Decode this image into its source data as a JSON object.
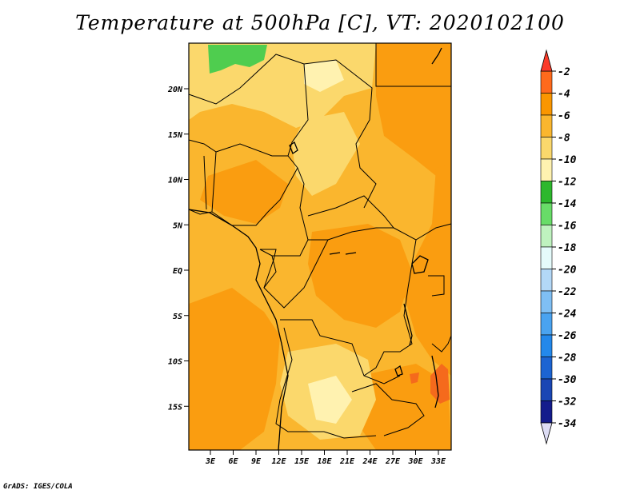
{
  "title": "Temperature at 500hPa [C], VT: 2020102100",
  "credit": "GrADS: IGES/COLA",
  "map": {
    "lat_ticks": [
      "20N",
      "15N",
      "10N",
      "5N",
      "EQ",
      "5S",
      "10S",
      "15S"
    ],
    "lon_ticks": [
      "3E",
      "6E",
      "9E",
      "12E",
      "15E",
      "18E",
      "21E",
      "24E",
      "27E",
      "30E",
      "33E"
    ]
  },
  "colorbar": {
    "labels": [
      "-2",
      "-4",
      "-6",
      "-8",
      "-10",
      "-12",
      "-14",
      "-16",
      "-18",
      "-20",
      "-22",
      "-24",
      "-26",
      "-28",
      "-30",
      "-32",
      "-34"
    ],
    "colors": [
      "#ff6a1c",
      "#fa9600",
      "#fab62e",
      "#fbd86c",
      "#fff2b0",
      "#2db82d",
      "#68dc68",
      "#bff2bf",
      "#e5fbfb",
      "#b3d8f7",
      "#7fbff4",
      "#4aa3f0",
      "#2388eb",
      "#1c64d2",
      "#1a46b4",
      "#141c8c"
    ],
    "over_color": "#fb3b2a",
    "under_color": "#dcdcf4"
  }
}
